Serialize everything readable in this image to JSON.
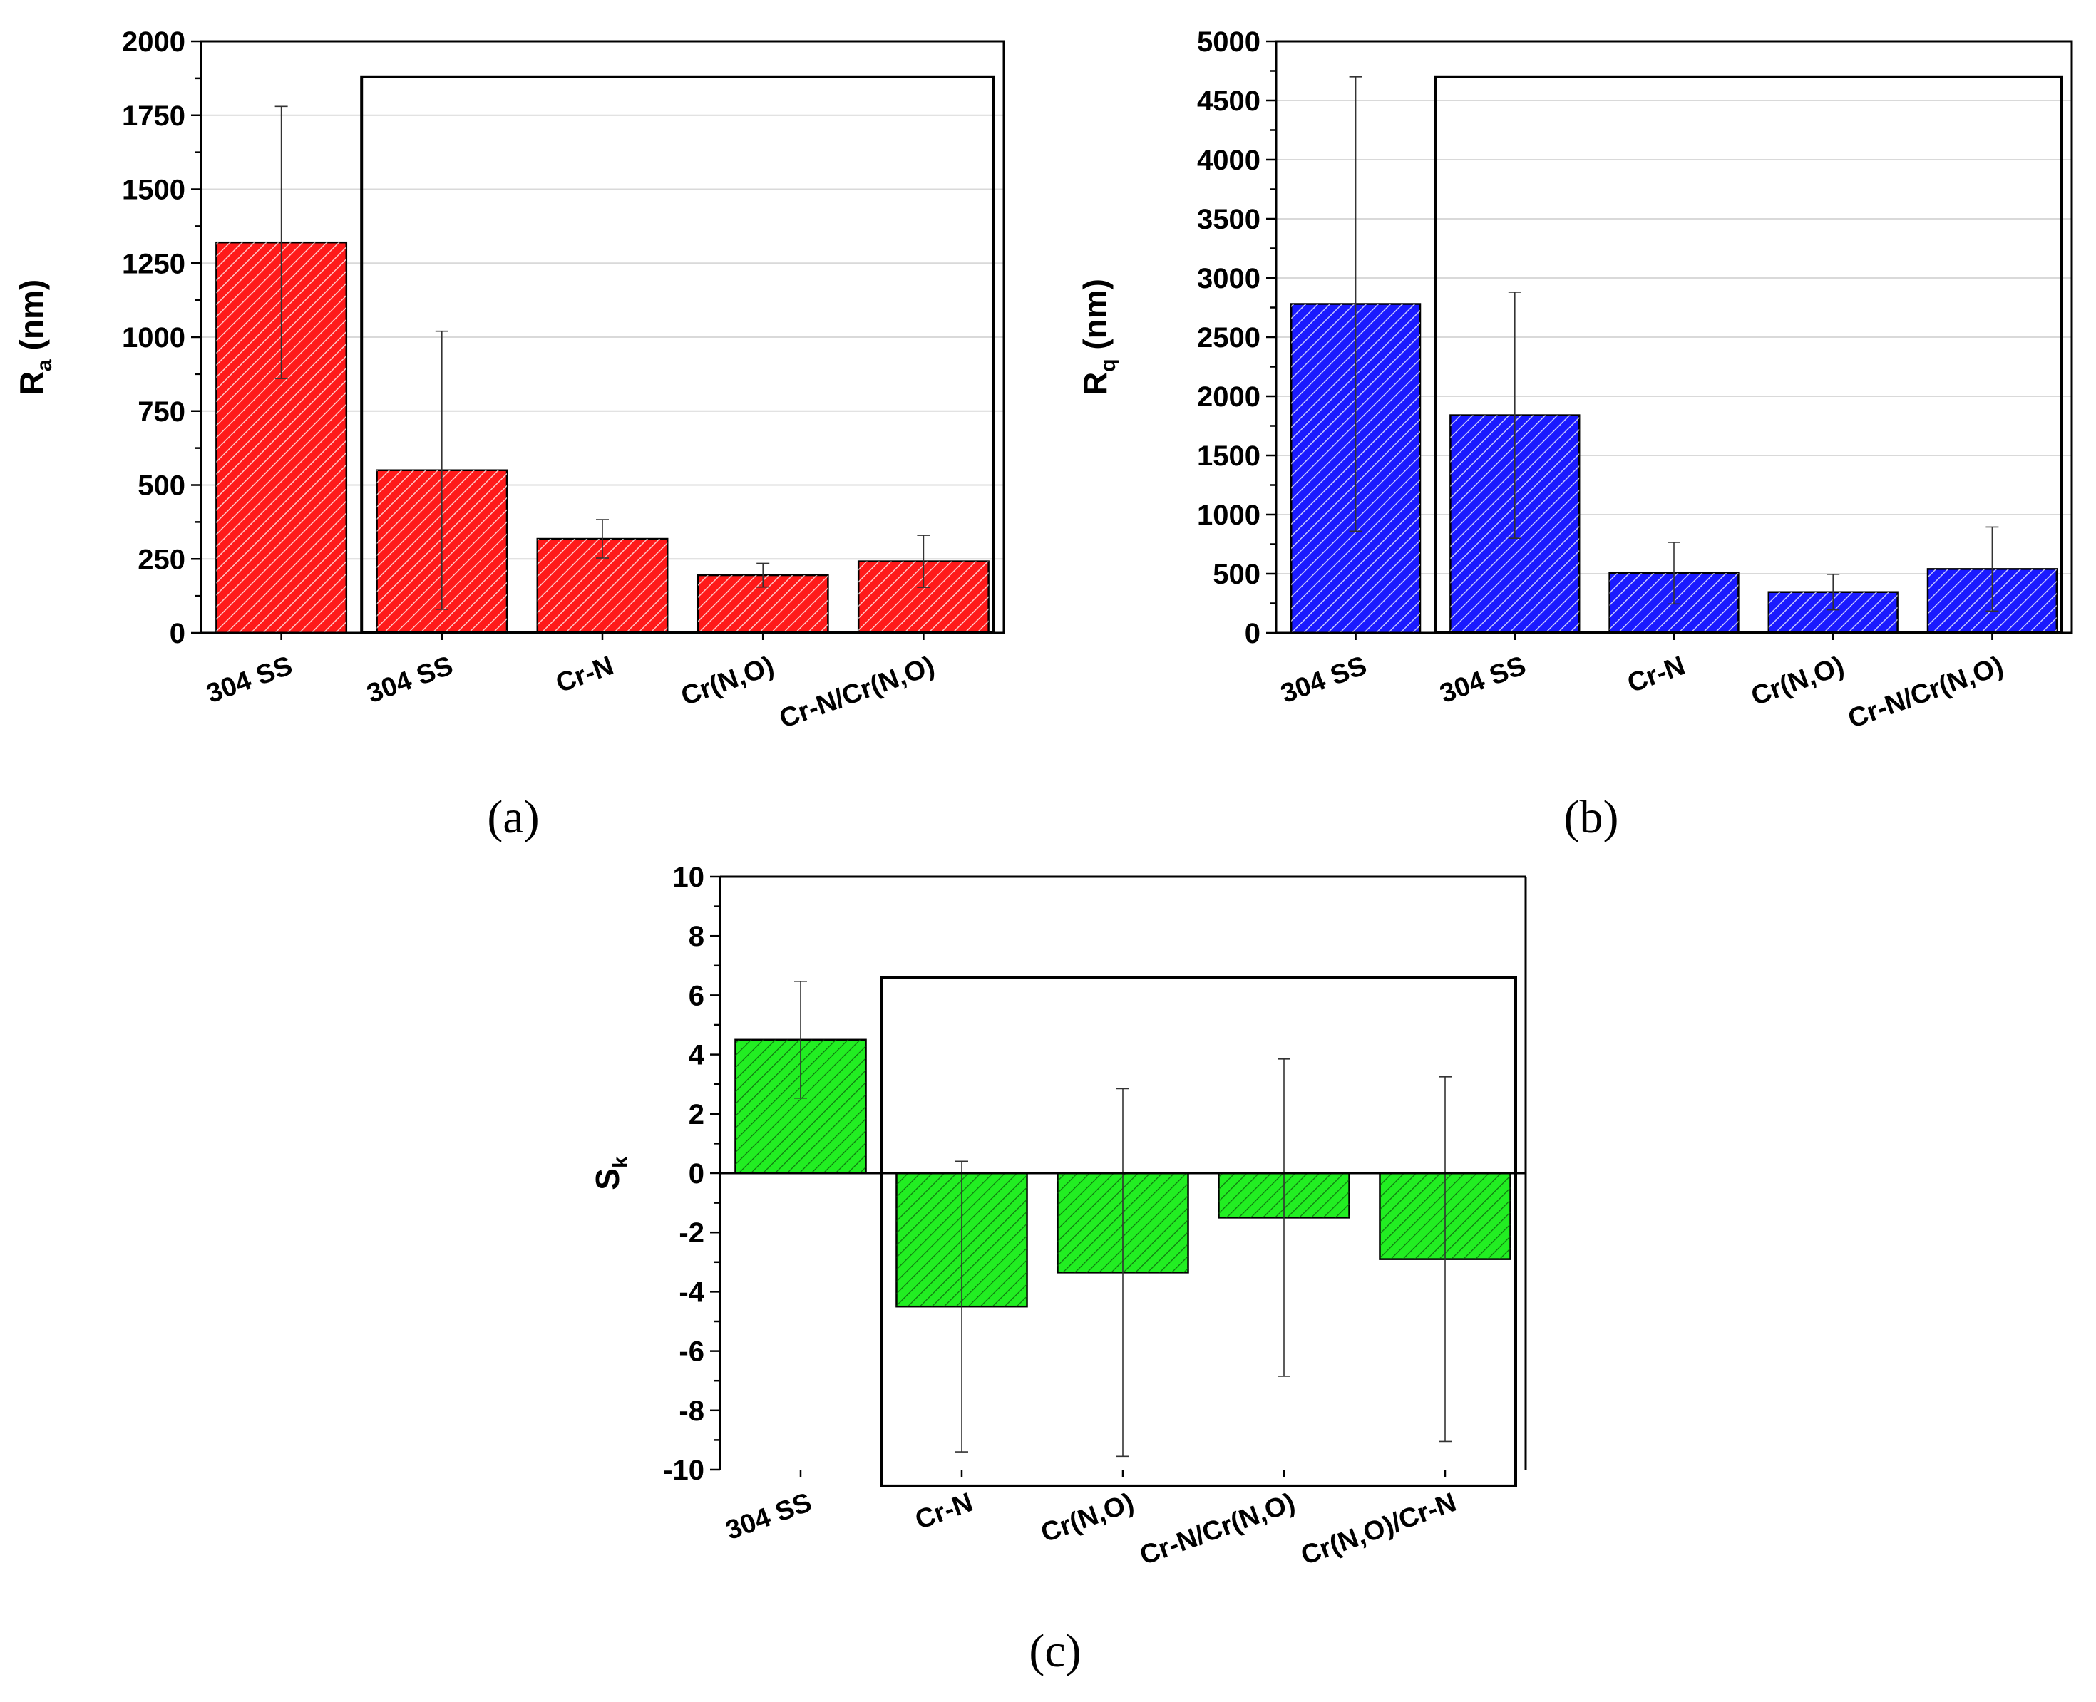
{
  "chart_data": [
    {
      "id": "a",
      "type": "bar",
      "panel_label": "(a)",
      "ylabel_main": "R",
      "ylabel_sub": "a",
      "ylabel_unit": " (nm)",
      "ylim": [
        0,
        2000
      ],
      "yticks": [
        0,
        250,
        500,
        750,
        1000,
        1250,
        1500,
        1750,
        2000
      ],
      "grid": true,
      "color": "#ff1a1a",
      "categories": [
        "304 SS",
        "304 SS",
        "Cr-N",
        "Cr(N,O)",
        "Cr-N/Cr(N,O)"
      ],
      "values": [
        1320,
        550,
        318,
        195,
        242
      ],
      "errors": [
        460,
        470,
        65,
        40,
        88
      ],
      "box_range": {
        "first": 1,
        "last": 4,
        "top": 1880
      }
    },
    {
      "id": "b",
      "type": "bar",
      "panel_label": "(b)",
      "ylabel_main": "R",
      "ylabel_sub": "q",
      "ylabel_unit": " (nm)",
      "ylim": [
        0,
        5000
      ],
      "yticks": [
        0,
        500,
        1000,
        1500,
        2000,
        2500,
        3000,
        3500,
        4000,
        4500,
        5000
      ],
      "grid": true,
      "color": "#1a1aff",
      "categories": [
        "304 SS",
        "304 SS",
        "Cr-N",
        "Cr(N,O)",
        "Cr-N/Cr(N,O)"
      ],
      "values": [
        2780,
        1840,
        505,
        345,
        540
      ],
      "errors": [
        1920,
        1040,
        260,
        150,
        355
      ],
      "box_range": {
        "first": 1,
        "last": 4,
        "top": 4700
      }
    },
    {
      "id": "c",
      "type": "bar",
      "panel_label": "(c)",
      "ylabel_main": "S",
      "ylabel_sub": "k",
      "ylabel_unit": "",
      "ylim": [
        -10,
        10
      ],
      "yticks": [
        -10,
        -8,
        -6,
        -4,
        -2,
        0,
        2,
        4,
        6,
        8,
        10
      ],
      "grid": false,
      "color": "#22ee22",
      "categories": [
        "304 SS",
        "Cr-N",
        "Cr(N,O)",
        "Cr-N/Cr(N,O)",
        "Cr(N,O)/Cr-N"
      ],
      "values": [
        4.5,
        -4.5,
        -3.35,
        -1.5,
        -2.9
      ],
      "errors": [
        1.97,
        4.9,
        6.2,
        5.35,
        6.15
      ],
      "box_range": {
        "first": 1,
        "last": 4,
        "top": 6.6,
        "bottom": -10.55
      }
    }
  ]
}
